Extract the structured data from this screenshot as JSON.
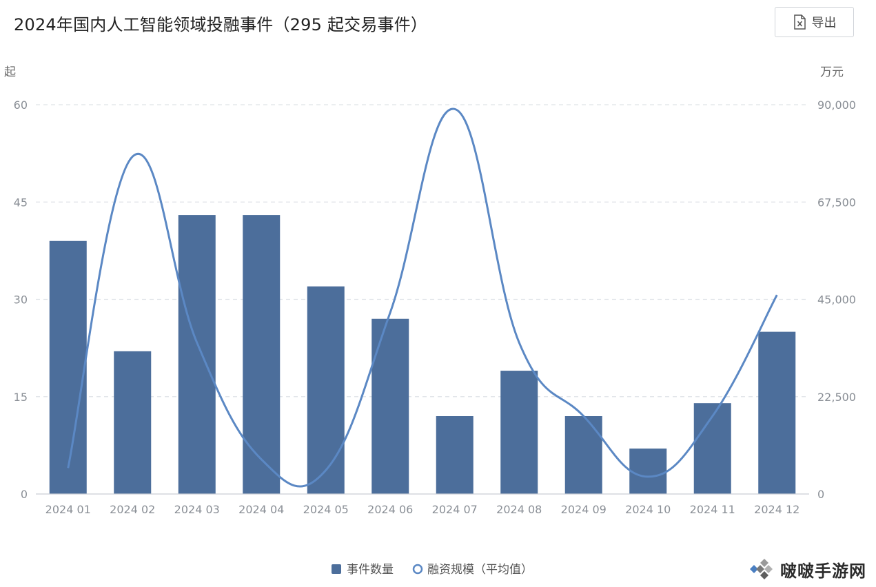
{
  "header": {
    "title": "2024年国内人工智能领域投融事件（295 起交易事件）",
    "export_label": "导出"
  },
  "watermark": {
    "text": "啵啵手游网"
  },
  "colors": {
    "bar": "#4c6e9b",
    "line": "#5b88c4",
    "grid": "#dfe3e8",
    "axis": "#c9ced4"
  },
  "chart_data": {
    "type": "bar",
    "categories": [
      "2024 01",
      "2024 02",
      "2024 03",
      "2024 04",
      "2024 05",
      "2024 06",
      "2024 07",
      "2024 08",
      "2024 09",
      "2024 10",
      "2024 11",
      "2024 12"
    ],
    "series": [
      {
        "name": "事件数量",
        "type": "bar",
        "axis": "left",
        "values": [
          39,
          22,
          43,
          43,
          32,
          27,
          12,
          19,
          12,
          7,
          14,
          25
        ]
      },
      {
        "name": "融资规模（平均值）",
        "type": "line",
        "axis": "right",
        "values": [
          6000,
          78000,
          35000,
          8000,
          5500,
          42000,
          89000,
          35000,
          18000,
          4000,
          18000,
          46000
        ]
      }
    ],
    "ylabel_left": "起",
    "ylabel_right": "万元",
    "ylim_left": [
      0,
      60
    ],
    "ylim_right": [
      0,
      90000
    ],
    "yticks_left": [
      "0",
      "15",
      "30",
      "45",
      "60"
    ],
    "yticks_right": [
      "0",
      "22,500",
      "45,000",
      "67,500",
      "90,000"
    ],
    "grid": true,
    "legend_position": "bottom"
  }
}
